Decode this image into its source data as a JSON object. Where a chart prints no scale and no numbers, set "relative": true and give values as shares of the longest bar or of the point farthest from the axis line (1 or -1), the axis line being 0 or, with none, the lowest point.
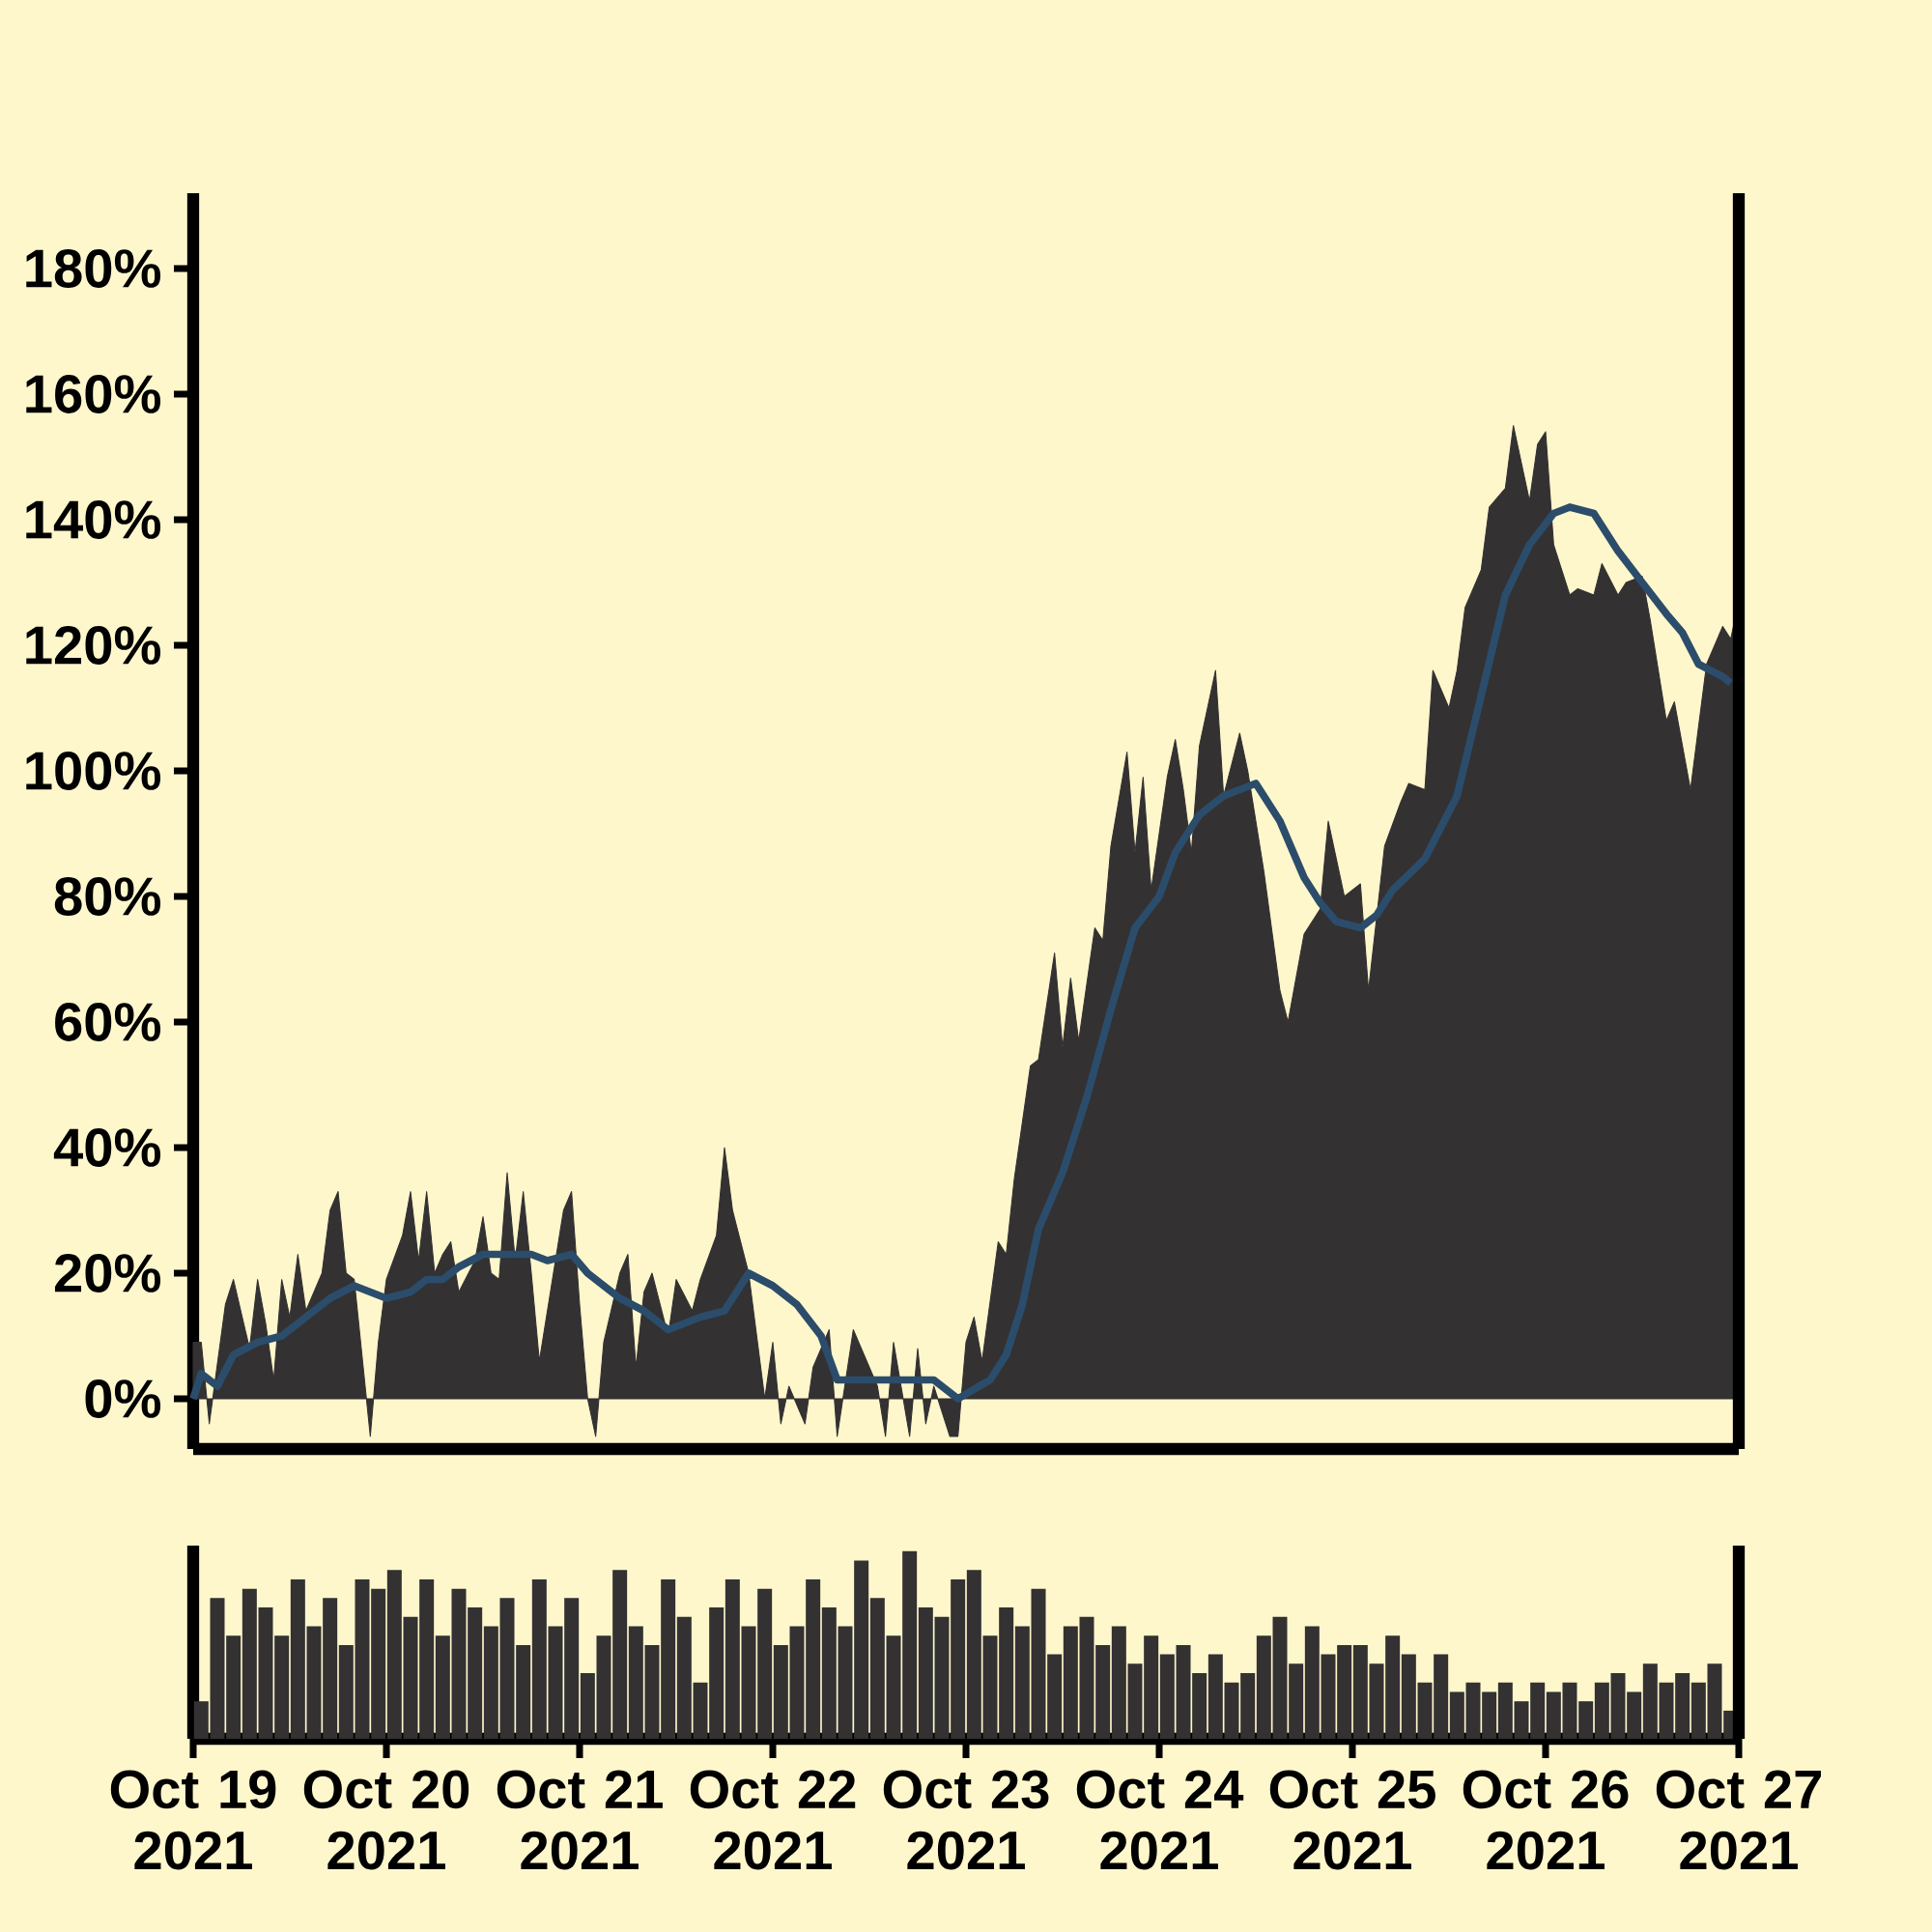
{
  "chart_data": [
    {
      "type": "area",
      "xlim": [
        "2021-10-19",
        "2021-10-27"
      ],
      "ylim": [
        -8,
        192
      ],
      "tick_labels": "y",
      "yticks": [
        {
          "value": 0,
          "label": "0%"
        },
        {
          "value": 20,
          "label": "20%"
        },
        {
          "value": 40,
          "label": "40%"
        },
        {
          "value": 60,
          "label": "60%"
        },
        {
          "value": 80,
          "label": "80%"
        },
        {
          "value": 100,
          "label": "100%"
        },
        {
          "value": 120,
          "label": "120%"
        },
        {
          "value": 140,
          "label": "140%"
        },
        {
          "value": 160,
          "label": "160%"
        },
        {
          "value": 180,
          "label": "180%"
        }
      ],
      "series": [
        {
          "type": "area",
          "color": "#333132",
          "x": [
            "2021-10-19T00:00",
            "2021-10-19T01:00",
            "2021-10-19T02:00",
            "2021-10-19T04:00",
            "2021-10-19T05:00",
            "2021-10-19T07:00",
            "2021-10-19T08:00",
            "2021-10-19T09:00",
            "2021-10-19T10:00",
            "2021-10-19T11:00",
            "2021-10-19T12:00",
            "2021-10-19T13:00",
            "2021-10-19T14:00",
            "2021-10-19T16:00",
            "2021-10-19T17:00",
            "2021-10-19T18:00",
            "2021-10-19T19:00",
            "2021-10-19T20:00",
            "2021-10-19T22:00",
            "2021-10-19T23:00",
            "2021-10-20T00:00",
            "2021-10-20T02:00",
            "2021-10-20T03:00",
            "2021-10-20T04:00",
            "2021-10-20T05:00",
            "2021-10-20T06:00",
            "2021-10-20T07:00",
            "2021-10-20T08:00",
            "2021-10-20T09:00",
            "2021-10-20T11:00",
            "2021-10-20T12:00",
            "2021-10-20T13:00",
            "2021-10-20T14:00",
            "2021-10-20T15:00",
            "2021-10-20T16:00",
            "2021-10-20T17:00",
            "2021-10-20T18:00",
            "2021-10-20T19:00",
            "2021-10-20T22:00",
            "2021-10-20T23:00",
            "2021-10-21T00:00",
            "2021-10-21T01:00",
            "2021-10-21T02:00",
            "2021-10-21T03:00",
            "2021-10-21T05:00",
            "2021-10-21T06:00",
            "2021-10-21T07:00",
            "2021-10-21T08:00",
            "2021-10-21T09:00",
            "2021-10-21T11:00",
            "2021-10-21T12:00",
            "2021-10-21T14:00",
            "2021-10-21T15:00",
            "2021-10-21T17:00",
            "2021-10-21T18:00",
            "2021-10-21T19:00",
            "2021-10-21T21:00",
            "2021-10-21T23:00",
            "2021-10-22T00:00",
            "2021-10-22T01:00",
            "2021-10-22T02:00",
            "2021-10-22T04:00",
            "2021-10-22T05:00",
            "2021-10-22T07:00",
            "2021-10-22T08:00",
            "2021-10-22T10:00",
            "2021-10-22T11:00",
            "2021-10-22T13:00",
            "2021-10-22T14:00",
            "2021-10-22T15:00",
            "2021-10-22T17:00",
            "2021-10-22T18:00",
            "2021-10-22T19:00",
            "2021-10-22T20:00",
            "2021-10-22T22:00",
            "2021-10-22T23:00",
            "2021-10-23T00:00",
            "2021-10-23T01:00",
            "2021-10-23T02:00",
            "2021-10-23T04:00",
            "2021-10-23T05:00",
            "2021-10-23T06:00",
            "2021-10-23T08:00",
            "2021-10-23T09:00",
            "2021-10-23T11:00",
            "2021-10-23T12:00",
            "2021-10-23T13:00",
            "2021-10-23T14:00",
            "2021-10-23T16:00",
            "2021-10-23T17:00",
            "2021-10-23T18:00",
            "2021-10-23T20:00",
            "2021-10-23T21:00",
            "2021-10-23T22:00",
            "2021-10-23T23:00",
            "2021-10-24T01:00",
            "2021-10-24T02:00",
            "2021-10-24T03:00",
            "2021-10-24T04:00",
            "2021-10-24T05:00",
            "2021-10-24T07:00",
            "2021-10-24T08:00",
            "2021-10-24T10:00",
            "2021-10-24T11:00",
            "2021-10-24T13:00",
            "2021-10-24T15:00",
            "2021-10-24T16:00",
            "2021-10-24T18:00",
            "2021-10-24T20:00",
            "2021-10-24T21:00",
            "2021-10-24T23:00",
            "2021-10-25T01:00",
            "2021-10-25T02:00",
            "2021-10-25T04:00",
            "2021-10-25T06:00",
            "2021-10-25T07:00",
            "2021-10-25T09:00",
            "2021-10-25T10:00",
            "2021-10-25T12:00",
            "2021-10-25T13:00",
            "2021-10-25T14:00",
            "2021-10-25T16:00",
            "2021-10-25T17:00",
            "2021-10-25T19:00",
            "2021-10-25T20:00",
            "2021-10-25T22:00",
            "2021-10-25T23:00",
            "2021-10-26T00:00",
            "2021-10-26T01:00",
            "2021-10-26T03:00",
            "2021-10-26T04:00",
            "2021-10-26T06:00",
            "2021-10-26T07:00",
            "2021-10-26T09:00",
            "2021-10-26T10:00",
            "2021-10-26T12:00",
            "2021-10-26T13:00",
            "2021-10-26T15:00",
            "2021-10-26T16:00",
            "2021-10-26T18:00",
            "2021-10-26T20:00",
            "2021-10-26T22:00",
            "2021-10-26T23:00",
            "2021-10-27T00:00"
          ],
          "values": [
            9,
            9,
            -4,
            15,
            19,
            8,
            19,
            12,
            3,
            19,
            13,
            23,
            14,
            20,
            30,
            33,
            20,
            19,
            -6,
            9,
            19,
            26,
            33,
            22,
            33,
            20,
            23,
            25,
            17,
            22,
            29,
            20,
            19,
            36,
            22,
            33,
            20,
            6,
            30,
            33,
            15,
            0,
            -6,
            9,
            20,
            23,
            5,
            17,
            20,
            10,
            19,
            14,
            19,
            26,
            40,
            30,
            20,
            0,
            9,
            -4,
            2,
            -4,
            5,
            11,
            -6,
            11,
            8,
            2,
            -6,
            9,
            -6,
            8,
            -4,
            2,
            -6,
            -6,
            9,
            13,
            6,
            25,
            23,
            35,
            53,
            54,
            71,
            56,
            67,
            57,
            75,
            73,
            88,
            103,
            87,
            99,
            81,
            99,
            105,
            97,
            87,
            104,
            116,
            96,
            106,
            100,
            84,
            65,
            60,
            74,
            78,
            92,
            80,
            82,
            65,
            88,
            95,
            98,
            97,
            116,
            110,
            116,
            126,
            132,
            142,
            145,
            155,
            143,
            152,
            154,
            136,
            128,
            129,
            128,
            133,
            128,
            130,
            131,
            124,
            108,
            111,
            97,
            117,
            123,
            121,
            127
          ]
        },
        {
          "type": "line",
          "color": "#2b4d6b",
          "x": [
            "2021-10-19T00:00",
            "2021-10-19T01:00",
            "2021-10-19T03:00",
            "2021-10-19T05:00",
            "2021-10-19T08:00",
            "2021-10-19T11:00",
            "2021-10-19T15:00",
            "2021-10-19T17:00",
            "2021-10-19T20:00",
            "2021-10-19T22:00",
            "2021-10-20T00:00",
            "2021-10-20T03:00",
            "2021-10-20T05:00",
            "2021-10-20T07:00",
            "2021-10-20T09:00",
            "2021-10-20T12:00",
            "2021-10-20T15:00",
            "2021-10-20T18:00",
            "2021-10-20T20:00",
            "2021-10-20T23:00",
            "2021-10-21T01:00",
            "2021-10-21T05:00",
            "2021-10-21T08:00",
            "2021-10-21T11:00",
            "2021-10-21T15:00",
            "2021-10-21T18:00",
            "2021-10-21T21:00",
            "2021-10-22T00:00",
            "2021-10-22T03:00",
            "2021-10-22T06:00",
            "2021-10-22T08:00",
            "2021-10-22T11:00",
            "2021-10-22T14:00",
            "2021-10-22T17:00",
            "2021-10-22T20:00",
            "2021-10-22T23:00",
            "2021-10-23T03:00",
            "2021-10-23T05:00",
            "2021-10-23T07:00",
            "2021-10-23T09:00",
            "2021-10-23T12:00",
            "2021-10-23T15:00",
            "2021-10-23T18:00",
            "2021-10-23T21:00",
            "2021-10-24T00:00",
            "2021-10-24T02:00",
            "2021-10-24T05:00",
            "2021-10-24T08:00",
            "2021-10-24T10:00",
            "2021-10-24T12:00",
            "2021-10-24T15:00",
            "2021-10-24T18:00",
            "2021-10-24T20:00",
            "2021-10-24T22:00",
            "2021-10-25T01:00",
            "2021-10-25T03:00",
            "2021-10-25T05:00",
            "2021-10-25T09:00",
            "2021-10-25T13:00",
            "2021-10-25T16:00",
            "2021-10-25T19:00",
            "2021-10-25T22:00",
            "2021-10-26T01:00",
            "2021-10-26T03:00",
            "2021-10-26T06:00",
            "2021-10-26T09:00",
            "2021-10-26T12:00",
            "2021-10-26T15:00",
            "2021-10-26T17:00",
            "2021-10-26T19:00",
            "2021-10-26T22:00",
            "2021-10-26T23:00"
          ],
          "values": [
            0,
            4,
            2,
            7,
            9,
            10,
            14,
            16,
            18,
            17,
            16,
            17,
            19,
            19,
            21,
            23,
            23,
            23,
            22,
            23,
            20,
            16,
            14,
            11,
            13,
            14,
            20,
            18,
            15,
            10,
            3,
            3,
            3,
            3,
            3,
            0,
            3,
            7,
            15,
            27,
            36,
            48,
            62,
            75,
            80,
            87,
            93,
            96,
            97,
            98,
            92,
            83,
            79,
            76,
            75,
            77,
            81,
            86,
            96,
            112,
            128,
            136,
            141,
            142,
            141,
            135,
            130,
            125,
            122,
            117,
            115,
            114
          ]
        }
      ]
    },
    {
      "type": "bar",
      "relative": true,
      "color": "#333132",
      "xlim": [
        "2021-10-19",
        "2021-10-27"
      ],
      "tick_labels": "x",
      "xticks": [
        {
          "value": "2021-10-19",
          "label": "Oct 19 2021"
        },
        {
          "value": "2021-10-20",
          "label": "Oct 20 2021"
        },
        {
          "value": "2021-10-21",
          "label": "Oct 21 2021"
        },
        {
          "value": "2021-10-22",
          "label": "Oct 22 2021"
        },
        {
          "value": "2021-10-23",
          "label": "Oct 23 2021"
        },
        {
          "value": "2021-10-24",
          "label": "Oct 24 2021"
        },
        {
          "value": "2021-10-25",
          "label": "Oct 25 2021"
        },
        {
          "value": "2021-10-26",
          "label": "Oct 26 2021"
        },
        {
          "value": "2021-10-27",
          "label": "Oct 27 2021"
        }
      ],
      "x": [
        "2021-10-19T01:00",
        "2021-10-19T03:00",
        "2021-10-19T05:00",
        "2021-10-19T07:00",
        "2021-10-19T09:00",
        "2021-10-19T11:00",
        "2021-10-19T13:00",
        "2021-10-19T15:00",
        "2021-10-19T17:00",
        "2021-10-19T19:00",
        "2021-10-19T21:00",
        "2021-10-19T23:00",
        "2021-10-20T01:00",
        "2021-10-20T03:00",
        "2021-10-20T05:00",
        "2021-10-20T07:00",
        "2021-10-20T09:00",
        "2021-10-20T11:00",
        "2021-10-20T13:00",
        "2021-10-20T15:00",
        "2021-10-20T17:00",
        "2021-10-20T19:00",
        "2021-10-20T21:00",
        "2021-10-20T23:00",
        "2021-10-21T01:00",
        "2021-10-21T03:00",
        "2021-10-21T05:00",
        "2021-10-21T07:00",
        "2021-10-21T09:00",
        "2021-10-21T11:00",
        "2021-10-21T13:00",
        "2021-10-21T15:00",
        "2021-10-21T17:00",
        "2021-10-21T19:00",
        "2021-10-21T21:00",
        "2021-10-21T23:00",
        "2021-10-22T01:00",
        "2021-10-22T03:00",
        "2021-10-22T05:00",
        "2021-10-22T07:00",
        "2021-10-22T09:00",
        "2021-10-22T11:00",
        "2021-10-22T13:00",
        "2021-10-22T15:00",
        "2021-10-22T17:00",
        "2021-10-22T19:00",
        "2021-10-22T21:00",
        "2021-10-22T23:00",
        "2021-10-23T01:00",
        "2021-10-23T03:00",
        "2021-10-23T05:00",
        "2021-10-23T07:00",
        "2021-10-23T09:00",
        "2021-10-23T11:00",
        "2021-10-23T13:00",
        "2021-10-23T15:00",
        "2021-10-23T17:00",
        "2021-10-23T19:00",
        "2021-10-23T21:00",
        "2021-10-23T23:00",
        "2021-10-24T01:00",
        "2021-10-24T03:00",
        "2021-10-24T05:00",
        "2021-10-24T07:00",
        "2021-10-24T09:00",
        "2021-10-24T11:00",
        "2021-10-24T13:00",
        "2021-10-24T15:00",
        "2021-10-24T17:00",
        "2021-10-24T19:00",
        "2021-10-24T21:00",
        "2021-10-24T23:00",
        "2021-10-25T01:00",
        "2021-10-25T03:00",
        "2021-10-25T05:00",
        "2021-10-25T07:00",
        "2021-10-25T09:00",
        "2021-10-25T11:00",
        "2021-10-25T13:00",
        "2021-10-25T15:00",
        "2021-10-25T17:00",
        "2021-10-25T19:00",
        "2021-10-25T21:00",
        "2021-10-25T23:00",
        "2021-10-26T01:00",
        "2021-10-26T03:00",
        "2021-10-26T05:00",
        "2021-10-26T07:00",
        "2021-10-26T09:00",
        "2021-10-26T11:00",
        "2021-10-26T13:00",
        "2021-10-26T15:00",
        "2021-10-26T17:00",
        "2021-10-26T19:00",
        "2021-10-26T21:00",
        "2021-10-26T23:00"
      ],
      "values": [
        0.2,
        0.75,
        0.55,
        0.8,
        0.7,
        0.55,
        0.85,
        0.6,
        0.75,
        0.5,
        0.85,
        0.8,
        0.9,
        0.65,
        0.85,
        0.55,
        0.8,
        0.7,
        0.6,
        0.75,
        0.5,
        0.85,
        0.6,
        0.75,
        0.35,
        0.55,
        0.9,
        0.6,
        0.5,
        0.85,
        0.65,
        0.3,
        0.7,
        0.85,
        0.6,
        0.8,
        0.5,
        0.6,
        0.85,
        0.7,
        0.6,
        0.95,
        0.75,
        0.55,
        1.0,
        0.7,
        0.65,
        0.85,
        0.9,
        0.55,
        0.7,
        0.6,
        0.8,
        0.45,
        0.6,
        0.65,
        0.5,
        0.6,
        0.4,
        0.55,
        0.45,
        0.5,
        0.35,
        0.45,
        0.3,
        0.35,
        0.55,
        0.65,
        0.4,
        0.6,
        0.45,
        0.5,
        0.5,
        0.4,
        0.55,
        0.45,
        0.3,
        0.45,
        0.25,
        0.3,
        0.25,
        0.3,
        0.2,
        0.3,
        0.25,
        0.3,
        0.2,
        0.3,
        0.35,
        0.25,
        0.4,
        0.3,
        0.35,
        0.3,
        0.4,
        0.15
      ]
    }
  ]
}
